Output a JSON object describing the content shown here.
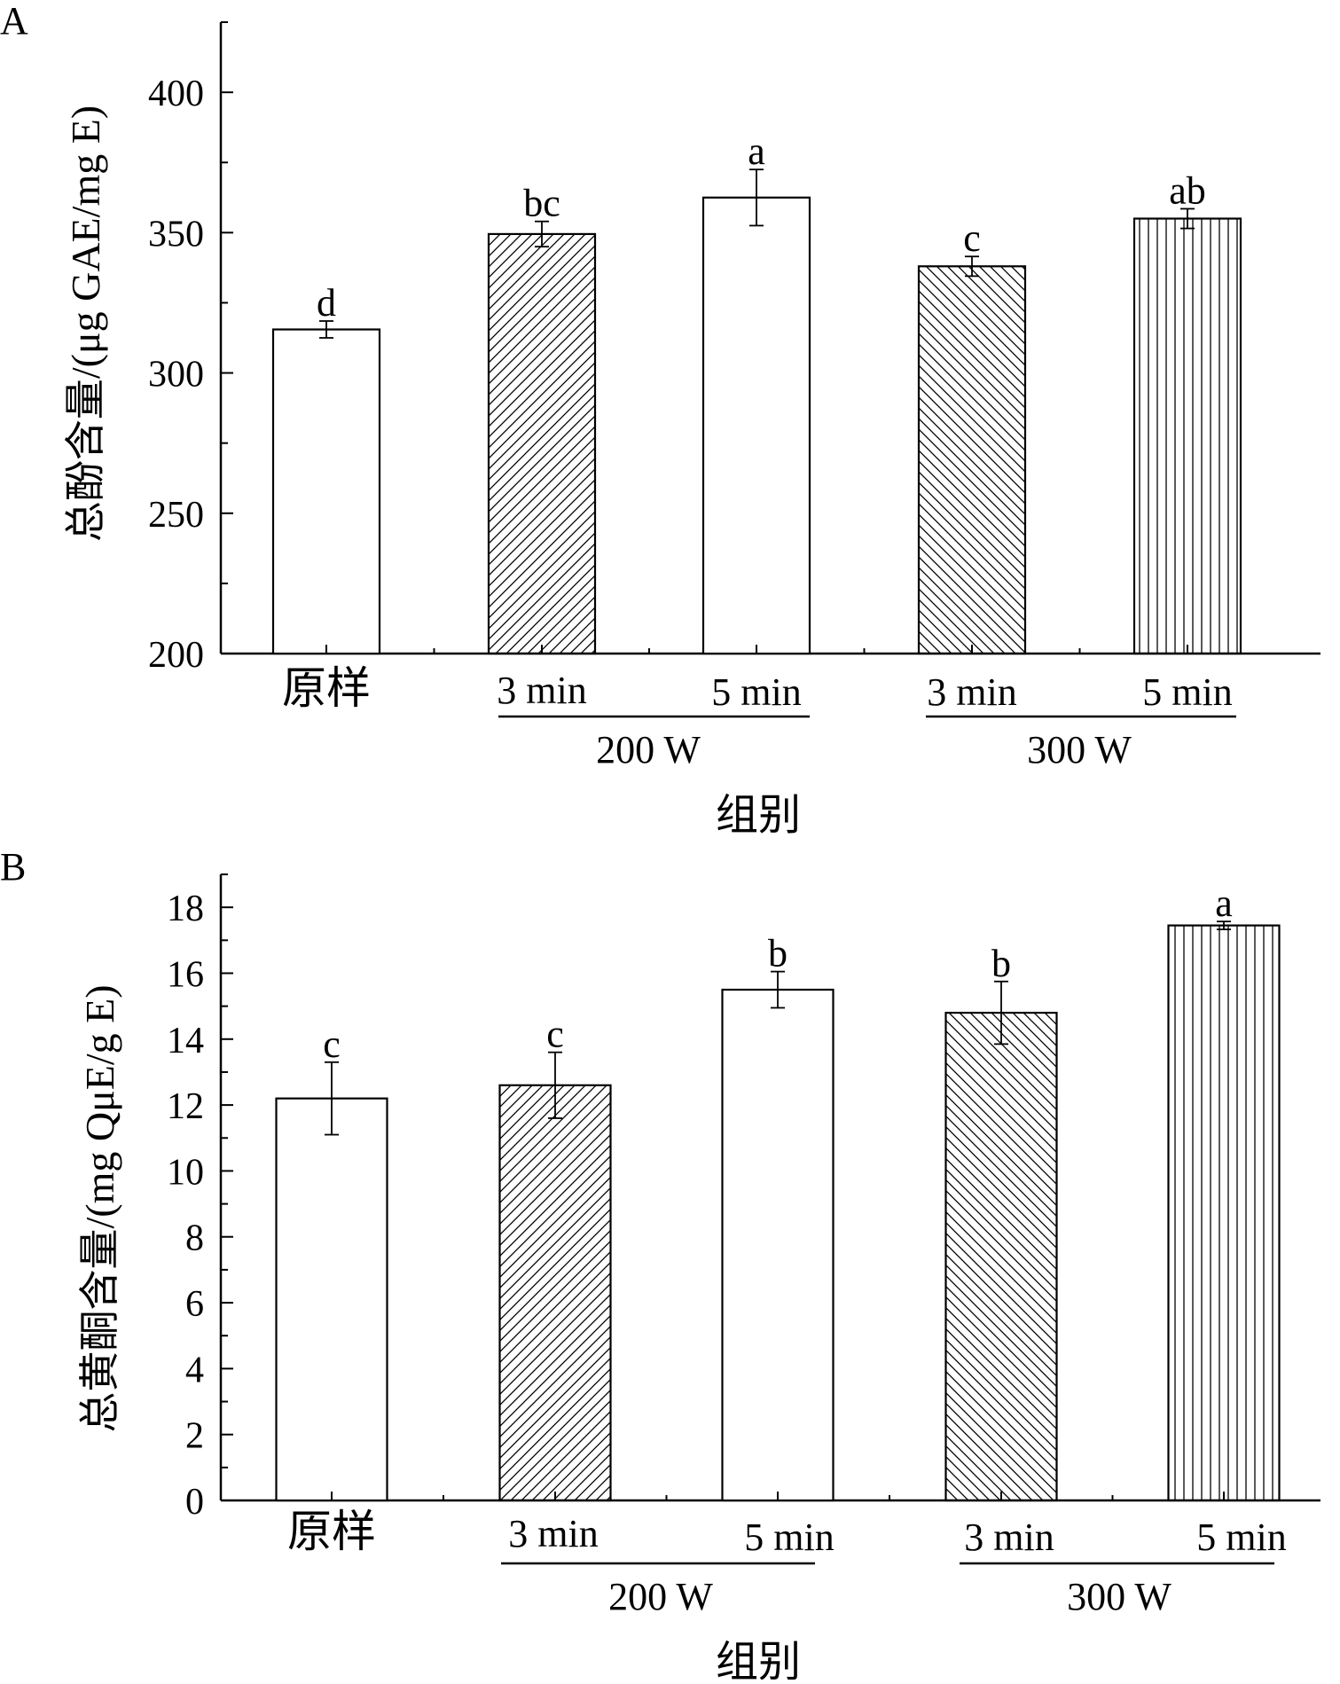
{
  "chart_data": [
    {
      "type": "bar",
      "panel_label": "A",
      "ylabel": "总酚含量/(μg GAE/mg E)",
      "xlabel": "组别",
      "ylim": [
        200,
        425
      ],
      "yticks": [
        200,
        250,
        300,
        350,
        400
      ],
      "categories": [
        "原样",
        "3 min",
        "5 min",
        "3 min",
        "5 min"
      ],
      "groups": [
        {
          "label": "200 W",
          "members": [
            1,
            2
          ]
        },
        {
          "label": "300 W",
          "members": [
            3,
            4
          ]
        }
      ],
      "values": [
        315.5,
        349.5,
        362.5,
        338.0,
        355.0
      ],
      "errors": [
        3.0,
        4.5,
        10.0,
        3.5,
        3.5
      ],
      "significance": [
        "d",
        "bc",
        "a",
        "c",
        "ab"
      ],
      "patterns": [
        "none",
        "diag-right",
        "none",
        "diag-left",
        "vertical"
      ],
      "grid": false,
      "legend": "none"
    },
    {
      "type": "bar",
      "panel_label": "B",
      "ylabel": "总黄酮含量/(mg QμE/g E)",
      "xlabel": "组别",
      "ylim": [
        0,
        19
      ],
      "yticks": [
        0,
        2,
        4,
        6,
        8,
        10,
        12,
        14,
        16,
        18
      ],
      "categories": [
        "原样",
        "3 min",
        "5 min",
        "3 min",
        "5 min"
      ],
      "groups": [
        {
          "label": "200 W",
          "members": [
            1,
            2
          ]
        },
        {
          "label": "300 W",
          "members": [
            3,
            4
          ]
        }
      ],
      "values": [
        12.2,
        12.6,
        15.5,
        14.8,
        17.45
      ],
      "errors": [
        1.1,
        1.0,
        0.55,
        0.95,
        0.12
      ],
      "significance": [
        "c",
        "c",
        "b",
        "b",
        "a"
      ],
      "patterns": [
        "none",
        "diag-right",
        "none",
        "diag-left",
        "vertical"
      ],
      "grid": false,
      "legend": "none"
    }
  ]
}
